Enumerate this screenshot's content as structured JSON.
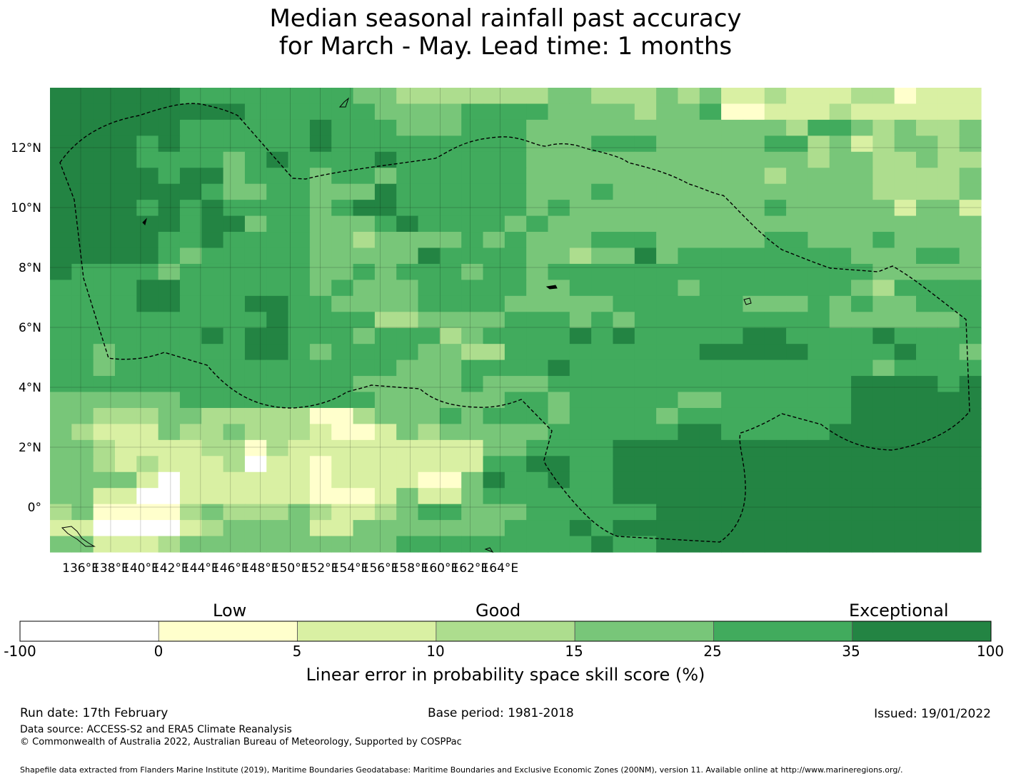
{
  "title_line1": "Median seasonal rainfall past accuracy",
  "title_line2": "for March - May. Lead time: 1 months",
  "x_ticks": [
    "136°E",
    "138°E",
    "140°E",
    "142°E",
    "144°E",
    "146°E",
    "148°E",
    "150°E",
    "152°E",
    "154°E",
    "156°E",
    "158°E",
    "160°E",
    "162°E",
    "164°E"
  ],
  "y_ticks": [
    "12°N",
    "10°N",
    "8°N",
    "6°N",
    "4°N",
    "2°N",
    "0°"
  ],
  "colorbar": {
    "categories": [
      "Low",
      "Good",
      "Exceptional"
    ],
    "ticks": [
      "-100",
      "0",
      "5",
      "10",
      "15",
      "25",
      "35",
      "100"
    ],
    "colors": [
      "#ffffff",
      "#ffffcc",
      "#d9f0a3",
      "#addd8e",
      "#78c679",
      "#41ab5d",
      "#238443"
    ],
    "label": "Linear error in probability space skill score (%)"
  },
  "grid_rows": [
    "6666665555555544333333344333434223222331222",
    "6666666665555554444555544443445112223222222",
    "6666665555556555444555444444444444355434334",
    "6666565555556555555555444555444445534234434",
    "6666555545655556555555444444444444434433433",
    "6666656645554554555555444444444443444433334",
    "6666666544554446555555444544444444444433334",
    "6666565655554566555555454444444445444442442",
    "6666665664554445655554544444444444444444444",
    "6666655655554434444545444555444445544454444",
    "6666654555554444465555443446455555555444554",
    "6555545555554454555455455555555555555544444",
    "5555665555554544455555445555545555555435555",
    "5555665556655444455554444455555544454544555",
    "5555555555655553344445554545555555554444445",
    "5555555656655545553455556565555566555565555",
    "5545555556654555544335555555556666655556554",
    "5545555555555555444555565555555555555545555",
    "5555555555555544444544455555555555555666656",
    "4444445555555554444445545555544555555666666",
    "4433344333331134445455545555455555555666666",
    "4322243343332112434444455555566555556666666",
    "4432222331322222222244555566666666666666666",
    "4432322230221222222255665566666666666666666",
    "4444202222221222211465565566666666666666666",
    "4422002222221112422455555566666666666666666",
    "3411113433343223455444555555666666666666666",
    "2200002344442244444445556566666666666666666",
    "4422234444444444555555555655666666666666666"
  ],
  "footer": {
    "run_date": "Run date: 17th February",
    "base_period": "Base period: 1981-2018",
    "issued": "Issued: 19/01/2022",
    "data_source": "Data source: ACCESS-S2 and ERA5 Climate Reanalysis",
    "copyright": "© Commonwealth of Australia 2022, Australian Bureau of Meteorology, Supported by COSPPac",
    "shapefile": "Shapefile data extracted from Flanders Marine Institute (2019), Maritime Boundaries Geodatabase: Maritime Boundaries and Exclusive Economic Zones (200NM), version 11. Available online at http://www.marineregions.org/."
  }
}
